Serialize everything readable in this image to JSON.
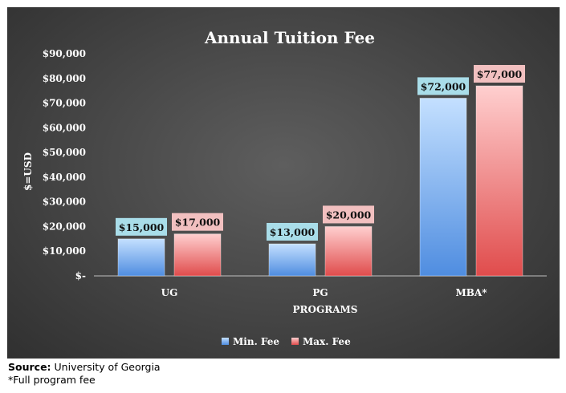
{
  "chart_data": {
    "type": "bar",
    "title": "Annual Tuition Fee",
    "xlabel": "PROGRAMS",
    "ylabel": "$=USD",
    "categories": [
      "UG",
      "PG",
      "MBA*"
    ],
    "series": [
      {
        "name": "Min. Fee",
        "values": [
          15000,
          13000,
          72000
        ],
        "labels": [
          "$15,000",
          "$13,000",
          "$72,000"
        ],
        "color": "#7fb2f0"
      },
      {
        "name": "Max. Fee",
        "values": [
          17000,
          20000,
          77000
        ],
        "labels": [
          "$17,000",
          "$20,000",
          "$77,000"
        ],
        "color": "#f08a8a"
      }
    ],
    "ylim": [
      0,
      90000
    ],
    "yticks": [
      0,
      10000,
      20000,
      30000,
      40000,
      50000,
      60000,
      70000,
      80000,
      90000
    ],
    "ytick_labels": [
      "$-",
      "$10,000",
      "$20,000",
      "$30,000",
      "$40,000",
      "$50,000",
      "$60,000",
      "$70,000",
      "$80,000",
      "$90,000"
    ],
    "legend_position": "bottom",
    "grid": false
  },
  "source": {
    "label": "Source:",
    "text": "University of Georgia"
  },
  "footnote": "*Full program fee",
  "colors": {
    "background": "#474747",
    "label_min_bg": "#a9dde9",
    "label_max_bg": "#f2c0c0",
    "text": "#ffffff"
  }
}
